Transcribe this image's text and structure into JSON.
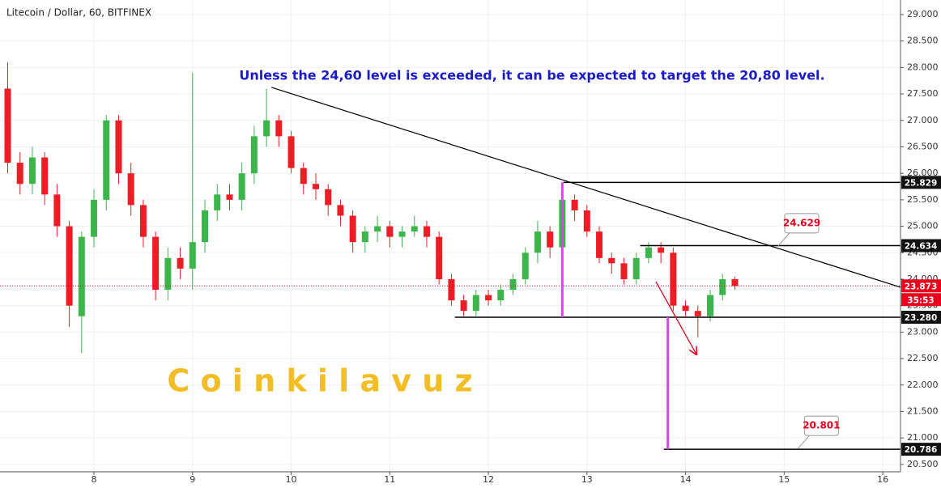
{
  "chart_data": {
    "type": "candlestick",
    "title": "Litecoin / Dollar, 60, BITFINEX",
    "annotation": "Unless the 24,60 level is exceeded, it can be expected to target the 20,80 level.",
    "watermark": "C o i n k i l a v u z",
    "up_color": "#3cb54a",
    "down_color": "#ee1c25",
    "xlim": [
      7.047,
      16.18
    ],
    "ylim": [
      20.36,
      29.275
    ],
    "xticks": [
      8,
      9,
      10,
      11,
      12,
      13,
      14,
      15,
      16
    ],
    "yticks": [
      {
        "value": 20.5,
        "label": "20.500"
      },
      {
        "value": 21,
        "label": "21.000"
      },
      {
        "value": 21.5,
        "label": "21.500"
      },
      {
        "value": 22,
        "label": "22.000"
      },
      {
        "value": 22.5,
        "label": "22.500"
      },
      {
        "value": 23,
        "label": "23.000"
      },
      {
        "value": 23.5,
        "label": "23.500"
      },
      {
        "value": 24,
        "label": "24.000"
      },
      {
        "value": 24.5,
        "label": "24.500"
      },
      {
        "value": 25,
        "label": "25.000"
      },
      {
        "value": 25.5,
        "label": "25.500"
      },
      {
        "value": 26,
        "label": "26.000"
      },
      {
        "value": 26.5,
        "label": "26.500"
      },
      {
        "value": 27,
        "label": "27.000"
      },
      {
        "value": 27.5,
        "label": "27.500"
      },
      {
        "value": 28,
        "label": "28.000"
      },
      {
        "value": 28.5,
        "label": "28.500"
      },
      {
        "value": 29,
        "label": "29.000"
      }
    ],
    "grid": true,
    "x": [
      7.125,
      7.25,
      7.375,
      7.5,
      7.625,
      7.75,
      7.875,
      8,
      8.125,
      8.25,
      8.375,
      8.5,
      8.625,
      8.75,
      8.875,
      9,
      9.125,
      9.25,
      9.375,
      9.5,
      9.625,
      9.75,
      9.875,
      10,
      10.125,
      10.25,
      10.375,
      10.5,
      10.625,
      10.75,
      10.875,
      11,
      11.125,
      11.25,
      11.375,
      11.5,
      11.625,
      11.75,
      11.875,
      12,
      12.125,
      12.25,
      12.375,
      12.5,
      12.625,
      12.75,
      12.875,
      13,
      13.125,
      13.25,
      13.375,
      13.5,
      13.625,
      13.75,
      13.875,
      14,
      14.125,
      14.25,
      14.375,
      14.5
    ],
    "open": [
      27.6,
      26.2,
      25.8,
      26.3,
      25.6,
      25.0,
      23.3,
      24.8,
      25.5,
      27.0,
      26.0,
      25.4,
      24.8,
      23.8,
      24.4,
      24.2,
      24.7,
      25.3,
      25.6,
      25.5,
      26.0,
      26.7,
      27.0,
      26.7,
      26.1,
      25.8,
      25.7,
      25.4,
      25.2,
      24.7,
      24.9,
      25.0,
      24.8,
      24.9,
      25.0,
      24.8,
      24.0,
      23.6,
      23.4,
      23.7,
      23.6,
      23.8,
      24.0,
      24.5,
      24.9,
      24.6,
      25.5,
      25.3,
      24.9,
      24.4,
      24.3,
      24.0,
      24.4,
      24.6,
      24.5,
      23.5,
      23.4,
      23.3,
      23.7,
      24.0
    ],
    "high": [
      28.1,
      26.4,
      26.5,
      26.4,
      25.8,
      25.1,
      24.9,
      25.7,
      27.1,
      27.1,
      26.2,
      25.5,
      24.9,
      24.6,
      24.6,
      27.9,
      25.5,
      25.8,
      25.8,
      26.2,
      26.9,
      27.6,
      27.1,
      26.8,
      26.2,
      26.0,
      25.8,
      25.5,
      25.3,
      25.0,
      25.2,
      25.1,
      25.0,
      25.2,
      25.1,
      24.9,
      24.1,
      23.7,
      23.8,
      23.8,
      23.9,
      24.1,
      24.6,
      25.1,
      25.0,
      25.83,
      25.6,
      25.4,
      25.0,
      24.5,
      24.4,
      24.5,
      24.7,
      24.7,
      24.6,
      23.6,
      23.5,
      23.8,
      24.1,
      24.05
    ],
    "low": [
      26.0,
      25.6,
      25.6,
      25.4,
      24.8,
      23.1,
      22.6,
      24.6,
      25.3,
      25.8,
      25.2,
      24.6,
      23.6,
      23.6,
      24.0,
      23.8,
      24.5,
      25.1,
      25.3,
      25.3,
      25.8,
      26.5,
      26.5,
      26.0,
      25.6,
      25.5,
      25.2,
      25.0,
      24.5,
      24.5,
      24.7,
      24.6,
      24.6,
      24.8,
      24.6,
      23.9,
      23.5,
      23.3,
      23.3,
      23.5,
      23.5,
      23.7,
      23.9,
      24.3,
      24.4,
      24.4,
      25.1,
      24.8,
      24.3,
      24.1,
      23.9,
      23.9,
      24.3,
      24.3,
      23.4,
      23.3,
      22.9,
      23.2,
      23.6,
      23.8
    ],
    "close": [
      26.2,
      25.8,
      26.3,
      25.6,
      25.0,
      23.5,
      24.8,
      25.5,
      27.0,
      26.0,
      25.4,
      24.8,
      23.8,
      24.4,
      24.2,
      24.7,
      25.3,
      25.6,
      25.5,
      26.0,
      26.7,
      27.0,
      26.7,
      26.1,
      25.8,
      25.7,
      25.4,
      25.2,
      24.7,
      24.9,
      25.0,
      24.8,
      24.9,
      25.0,
      24.8,
      24.0,
      23.6,
      23.4,
      23.7,
      23.6,
      23.8,
      24.0,
      24.5,
      24.9,
      24.6,
      25.5,
      25.3,
      24.9,
      24.4,
      24.3,
      24.0,
      24.4,
      24.6,
      24.5,
      23.5,
      23.4,
      23.3,
      23.7,
      24.0,
      23.87
    ],
    "levels": [
      {
        "value": 25.829,
        "x0": 12.76
      },
      {
        "value": 24.634,
        "x0": 13.54
      },
      {
        "value": {
          "value": 23.28,
          "label": "23.280"
        },
        "x0": 11.66
      },
      {
        "value": 20.786,
        "x0": 13.78
      }
    ],
    "current_price": {
      "value": 23.873,
      "countdown": "35:53",
      "color": "#e8001c"
    },
    "trendline": {
      "x": [
        9.8,
        16.18
      ],
      "y": [
        27.624,
        23.847
      ]
    },
    "projections": [
      {
        "x": 12.75,
        "y": [
          25.829,
          23.28
        ]
      },
      {
        "x": 13.82,
        "y": [
          23.28,
          20.786
        ]
      }
    ],
    "projection_color": "#e040fb",
    "arrow": {
      "x": [
        13.7,
        14.11
      ],
      "y": [
        23.95,
        22.58
      ],
      "color": "#e8001c"
    },
    "callouts": [
      {
        "value": 24.629,
        "x": 14.94
      },
      {
        "value": 20.801,
        "x": 15.14
      }
    ]
  }
}
